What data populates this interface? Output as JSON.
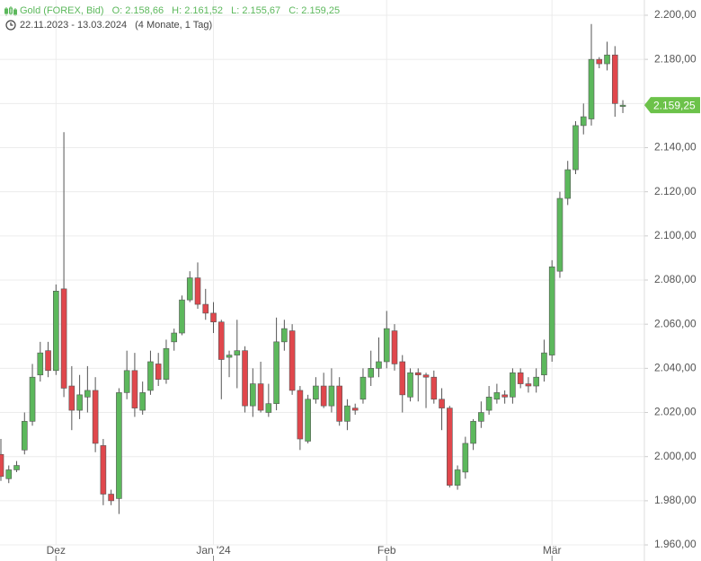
{
  "header": {
    "instrument": "Gold (FOREX, Bid)",
    "open": "O: 2.158,66",
    "high": "H: 2.161,52",
    "low": "L: 2.155,67",
    "close": "C: 2.159,25",
    "range": "22.11.2023 - 13.03.2024",
    "duration": "(4 Monate, 1 Tag)"
  },
  "chart_data": {
    "type": "candlestick",
    "categories": [
      null,
      null,
      null,
      null,
      null,
      null,
      null,
      "Dez",
      null,
      null,
      null,
      null,
      null,
      null,
      null,
      null,
      null,
      null,
      null,
      null,
      null,
      null,
      null,
      null,
      null,
      null,
      null,
      "Jan '24",
      null,
      null,
      null,
      null,
      null,
      null,
      null,
      null,
      null,
      null,
      null,
      null,
      null,
      null,
      null,
      null,
      null,
      null,
      null,
      null,
      null,
      "Feb",
      null,
      null,
      null,
      null,
      null,
      null,
      null,
      null,
      null,
      null,
      null,
      null,
      null,
      null,
      null,
      null,
      null,
      null,
      null,
      null,
      "Mär",
      null,
      null,
      null,
      null,
      null,
      null,
      null,
      null,
      null
    ],
    "series": [
      {
        "name": "Gold (FOREX, Bid)",
        "up_color": "#5cb85c",
        "down_color": "#e0474c",
        "open": [
          2001,
          1990,
          1994,
          2003,
          2016,
          2037,
          2048,
          2039,
          2076,
          2032,
          2021,
          2027,
          2030,
          2005,
          1983,
          1981,
          2029,
          2039,
          2021,
          2030,
          2042,
          2035,
          2052,
          2056,
          2071,
          2081,
          2069,
          2065,
          2061,
          2045,
          2046,
          2048,
          2023,
          2033,
          2020,
          2024,
          2052,
          2057,
          2030,
          2007,
          2026,
          2032,
          2023,
          2032,
          2016,
          2022,
          2026,
          2036,
          2040,
          2043,
          2057,
          2043,
          2027,
          2038,
          2037,
          2036,
          2026,
          2022,
          1987,
          1993,
          2006,
          2016,
          2021,
          2026,
          2028,
          2027,
          2038,
          2033,
          2032,
          2037,
          2046,
          2084,
          2117,
          2130,
          2150,
          2153,
          2180,
          2178,
          2182,
          2158.66
        ],
        "high": [
          2008,
          1996,
          1998,
          2020,
          2042,
          2052,
          2052,
          2078,
          2147,
          2041,
          2037,
          2041,
          2036,
          2008,
          1985,
          2031,
          2048,
          2047,
          2034,
          2048,
          2047,
          2053,
          2058,
          2073,
          2084,
          2088,
          2076,
          2070,
          2062,
          2048,
          2062,
          2050,
          2040,
          2043,
          2033,
          2063,
          2062,
          2060,
          2032,
          2028,
          2036,
          2038,
          2040,
          2036,
          2026,
          2024,
          2040,
          2048,
          2054,
          2066,
          2060,
          2046,
          2040,
          2040,
          2038,
          2039,
          2031,
          2023,
          1996,
          2009,
          2017,
          2025,
          2032,
          2033,
          2030,
          2040,
          2040,
          2036,
          2040,
          2053,
          2089,
          2120,
          2134,
          2152,
          2160,
          2196,
          2181,
          2188,
          2186,
          2161.52
        ],
        "low": [
          1989,
          1988,
          1993,
          2001,
          2014,
          2034,
          2036,
          2037,
          2027,
          2012,
          2017,
          2020,
          2002,
          1978,
          1978,
          1974,
          2026,
          2018,
          2019,
          2028,
          2032,
          2033,
          2048,
          2055,
          2070,
          2067,
          2062,
          2056,
          2026,
          2036,
          2031,
          2020,
          2018,
          2020,
          2018,
          2021,
          2048,
          2028,
          2003,
          2006,
          2024,
          2022,
          2020,
          2014,
          2012,
          2019,
          2024,
          2032,
          2036,
          2040,
          2039,
          2020,
          2025,
          2025,
          2022,
          2024,
          2012,
          1986,
          1985,
          1990,
          2003,
          2013,
          2019,
          2024,
          2024,
          2024,
          2031,
          2029,
          2029,
          2034,
          2043,
          2081,
          2114,
          2128,
          2146,
          2150,
          2176,
          2175,
          2154,
          2155.67
        ],
        "close": [
          1991,
          1994,
          1996,
          2016,
          2036,
          2047,
          2039,
          2075,
          2031,
          2021,
          2028,
          2030,
          2006,
          1983,
          1980,
          2029,
          2039,
          2022,
          2029,
          2043,
          2035,
          2049,
          2056,
          2071,
          2081,
          2069,
          2065,
          2061,
          2044,
          2046,
          2048,
          2023,
          2033,
          2021,
          2024,
          2052,
          2058,
          2030,
          2008,
          2026,
          2032,
          2023,
          2032,
          2016,
          2023,
          2021,
          2036,
          2040,
          2043,
          2058,
          2042,
          2028,
          2038,
          2037,
          2036,
          2026,
          2022,
          1987,
          1994,
          2006,
          2016,
          2020,
          2027,
          2029,
          2027,
          2038,
          2033,
          2032,
          2036,
          2047,
          2086,
          2117,
          2130,
          2150,
          2154,
          2180,
          2178,
          2182,
          2160,
          2159.25
        ]
      }
    ],
    "ylim": [
      1952.7,
      2206.9
    ],
    "yticks": [
      {
        "value": 1960,
        "label": "1.960,00"
      },
      {
        "value": 1980,
        "label": "1.980,00"
      },
      {
        "value": 2000,
        "label": "2.000,00"
      },
      {
        "value": 2020,
        "label": "2.020,00"
      },
      {
        "value": 2040,
        "label": "2.040,00"
      },
      {
        "value": 2060,
        "label": "2.060,00"
      },
      {
        "value": 2080,
        "label": "2.080,00"
      },
      {
        "value": 2100,
        "label": "2.100,00"
      },
      {
        "value": 2120,
        "label": "2.120,00"
      },
      {
        "value": 2140,
        "label": "2.140,00"
      },
      {
        "value": 2160,
        "label": "2.160,00"
      },
      {
        "value": 2180,
        "label": "2.180,00"
      },
      {
        "value": 2200,
        "label": "2.200,00"
      }
    ],
    "last_price": {
      "value": 2159.25,
      "label": "2.159,25",
      "color": "#6cc24a"
    },
    "grid": true
  }
}
